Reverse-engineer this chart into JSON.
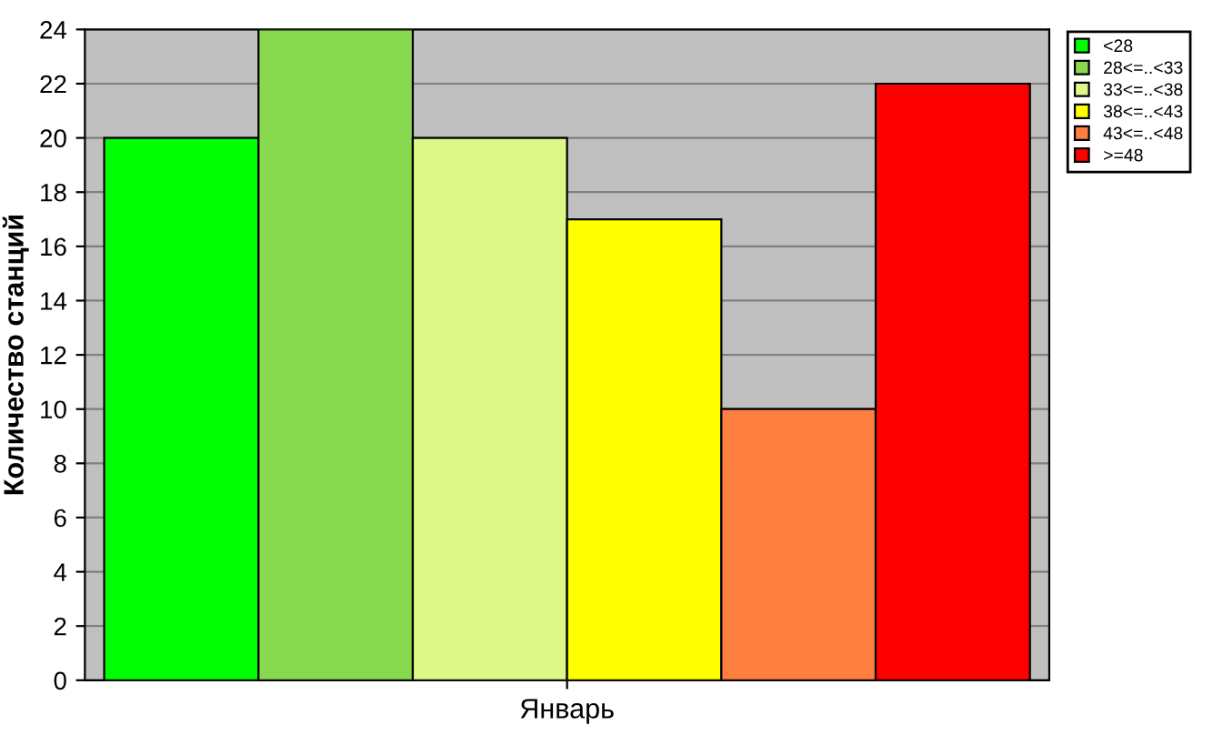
{
  "chart_data": {
    "type": "bar",
    "ylabel": "Количество станций",
    "categories": [
      "Январь"
    ],
    "series": [
      {
        "name": "<28",
        "color": "#00ff00",
        "values": [
          20
        ]
      },
      {
        "name": "28<=..<33",
        "color": "#88d850",
        "values": [
          24
        ]
      },
      {
        "name": "33<=..<38",
        "color": "#ddf888",
        "values": [
          20
        ]
      },
      {
        "name": "38<=..<43",
        "color": "#ffff00",
        "values": [
          17
        ]
      },
      {
        "name": "43<=..<48",
        "color": "#ff7f40",
        "values": [
          10
        ]
      },
      {
        "name": ">=48",
        "color": "#ff0000",
        "values": [
          22
        ]
      }
    ],
    "ylim": [
      0,
      24
    ],
    "yticks": [
      0,
      2,
      4,
      6,
      8,
      10,
      12,
      14,
      16,
      18,
      20,
      22,
      24
    ],
    "grid": "y",
    "legend": "top right"
  }
}
